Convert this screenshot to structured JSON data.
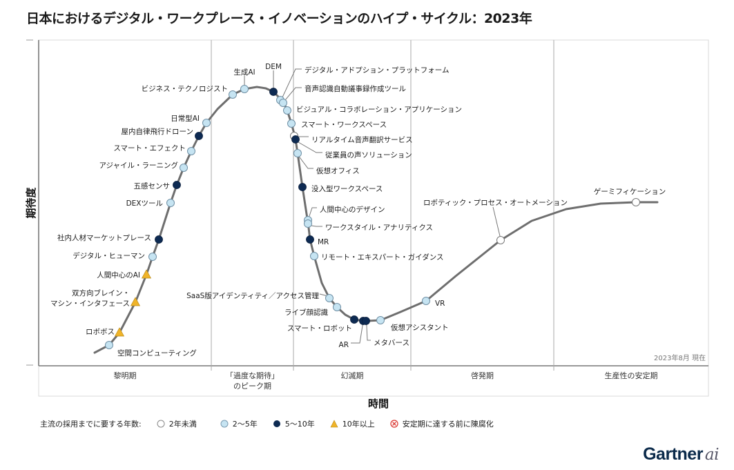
{
  "title": "日本におけるデジタル・ワークプレース・イノベーションのハイプ・サイクル：2023年",
  "chart_data": {
    "type": "hype-cycle",
    "title": "日本におけるデジタル・ワークプレース・イノベーションのハイプ・サイクル：2023年",
    "xlabel": "時間",
    "ylabel": "期待度",
    "as_of": "2023年8月 現在",
    "phases": [
      "黎明期",
      "「過度な期待」\nのピーク期",
      "幻滅期",
      "啓発期",
      "生産性の安定期"
    ],
    "legend_title": "主流の採用までに要する年数:",
    "legend": [
      {
        "key": "lt2",
        "label": "2年未満",
        "color": "#ffffff"
      },
      {
        "key": "2to5",
        "label": "2～5年",
        "color": "#c6e4f2"
      },
      {
        "key": "5to10",
        "label": "5～10年",
        "color": "#0d2a52"
      },
      {
        "key": "gt10",
        "label": "10年以上",
        "color": "#f0b429"
      },
      {
        "key": "obsolete",
        "label": "安定期に達する前に陳腐化",
        "color": "#d9312b"
      }
    ],
    "items": [
      {
        "name": "空間コンピューティング",
        "phase": "黎明期",
        "position": 0.03,
        "years": "2to5"
      },
      {
        "name": "ロボボス",
        "phase": "黎明期",
        "position": 0.06,
        "years": "gt10"
      },
      {
        "name": "双方向ブレイン・マシン・インタフェース",
        "phase": "黎明期",
        "position": 0.12,
        "years": "gt10"
      },
      {
        "name": "人間中心のAI",
        "phase": "黎明期",
        "position": 0.16,
        "years": "gt10"
      },
      {
        "name": "デジタル・ヒューマン",
        "phase": "黎明期",
        "position": 0.19,
        "years": "2to5"
      },
      {
        "name": "社内人材マーケットプレース",
        "phase": "黎明期",
        "position": 0.22,
        "years": "5to10"
      },
      {
        "name": "DEXツール",
        "phase": "黎明期",
        "position": 0.28,
        "years": "2to5"
      },
      {
        "name": "五感センサ",
        "phase": "黎明期",
        "position": 0.31,
        "years": "5to10"
      },
      {
        "name": "アジャイル・ラーニング",
        "phase": "黎明期",
        "position": 0.34,
        "years": "2to5"
      },
      {
        "name": "スマート・エフェクト",
        "phase": "黎明期",
        "position": 0.37,
        "years": "2to5"
      },
      {
        "name": "屋内自律飛行ドローン",
        "phase": "黎明期",
        "position": 0.4,
        "years": "5to10"
      },
      {
        "name": "日常型AI",
        "phase": "「過度な期待」のピーク期",
        "position": 0.44,
        "years": "2to5"
      },
      {
        "name": "ビジネス・テクノロジスト",
        "phase": "「過度な期待」のピーク期",
        "position": 0.55,
        "years": "2to5"
      },
      {
        "name": "生成AI",
        "phase": "「過度な期待」のピーク期",
        "position": 0.6,
        "years": "2to5"
      },
      {
        "name": "DEM",
        "phase": "「過度な期待」のピーク期",
        "position": 0.74,
        "years": "5to10"
      },
      {
        "name": "デジタル・アドプション・プラットフォーム",
        "phase": "「過度な期待」のピーク期",
        "position": 0.78,
        "years": "2to5"
      },
      {
        "name": "音声認識自動議事録作成ツール",
        "phase": "「過度な期待」のピーク期",
        "position": 0.8,
        "years": "2to5"
      },
      {
        "name": "ビジュアル・コラボレーション・アプリケーション",
        "phase": "「過度な期待」のピーク期",
        "position": 0.84,
        "years": "2to5"
      },
      {
        "name": "スマート・ワークスペース",
        "phase": "「過度な期待」のピーク期",
        "position": 0.88,
        "years": "2to5"
      },
      {
        "name": "リアルタイム音声翻訳サービス",
        "phase": "「過度な期待」のピーク期",
        "position": 0.92,
        "years": "lt2"
      },
      {
        "name": "従業員の声ソリューション",
        "phase": "「過度な期待」のピーク期",
        "position": 0.93,
        "years": "5to10"
      },
      {
        "name": "仮想オフィス",
        "phase": "「過度な期待」のピーク期",
        "position": 0.97,
        "years": "2to5"
      },
      {
        "name": "没入型ワークスペース",
        "phase": "幻滅期",
        "position": 0.05,
        "years": "5to10"
      },
      {
        "name": "人間中心のデザイン",
        "phase": "幻滅期",
        "position": 0.13,
        "years": "2to5"
      },
      {
        "name": "ワークスタイル・アナリティクス",
        "phase": "幻滅期",
        "position": 0.14,
        "years": "2to5"
      },
      {
        "name": "MR",
        "phase": "幻滅期",
        "position": 0.19,
        "years": "5to10"
      },
      {
        "name": "リモート・エキスパート・ガイダンス",
        "phase": "幻滅期",
        "position": 0.24,
        "years": "2to5"
      },
      {
        "name": "SaaS版アイデンティティ／アクセス管理",
        "phase": "幻滅期",
        "position": 0.44,
        "years": "2to5"
      },
      {
        "name": "ライブ顔認識",
        "phase": "幻滅期",
        "position": 0.5,
        "years": "2to5"
      },
      {
        "name": "スマート・ロボット",
        "phase": "幻滅期",
        "position": 0.72,
        "years": "5to10"
      },
      {
        "name": "AR",
        "phase": "幻滅期",
        "position": 0.8,
        "years": "5to10"
      },
      {
        "name": "メタバース",
        "phase": "幻滅期",
        "position": 0.82,
        "years": "5to10"
      },
      {
        "name": "仮想アシスタント",
        "phase": "幻滅期",
        "position": 0.92,
        "years": "2to5"
      },
      {
        "name": "VR",
        "phase": "啓発期",
        "position": 0.14,
        "years": "2to5"
      },
      {
        "name": "ロボティック・プロセス・オートメーション",
        "phase": "啓発期",
        "position": 0.62,
        "years": "lt2"
      },
      {
        "name": "ゲーミフィケーション",
        "phase": "生産性の安定期",
        "position": 0.6,
        "years": "lt2"
      }
    ]
  },
  "brand": {
    "name": "Gartner",
    "suffix": "ai"
  }
}
